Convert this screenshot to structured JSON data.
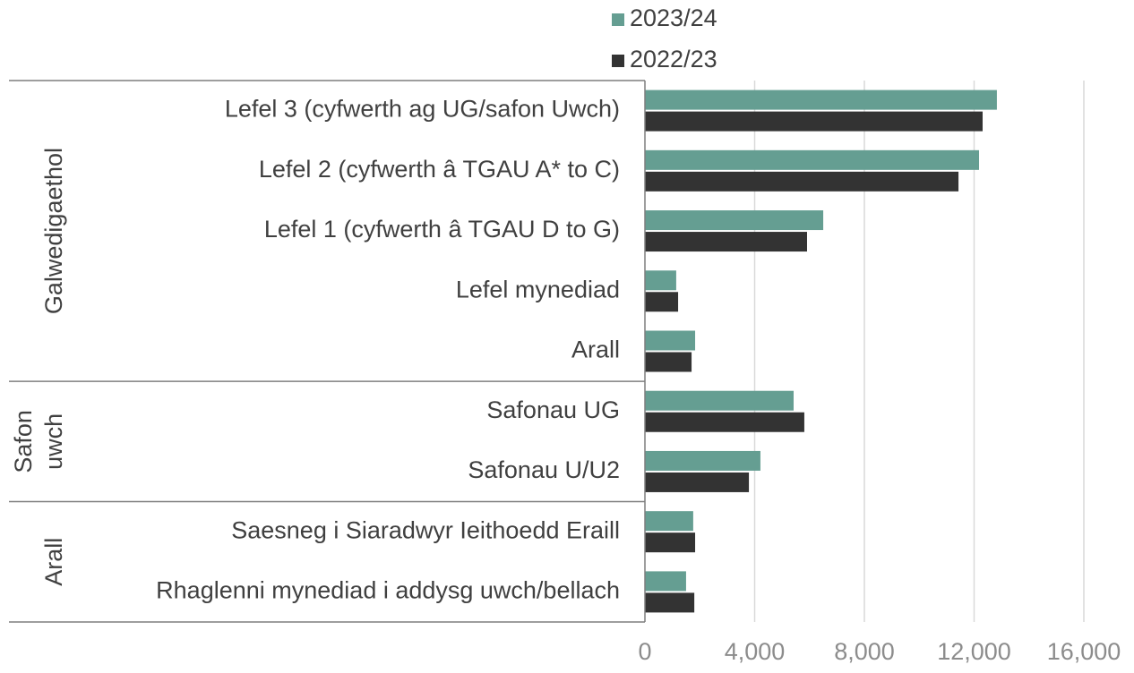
{
  "chart_data": {
    "type": "bar",
    "orientation": "horizontal",
    "groups": [
      {
        "name": "Galwedigaethol",
        "categories": [
          "Lefel 3 (cyfwerth ag UG/safon Uwch)",
          "Lefel 2 (cyfwerth â TGAU A* to C)",
          "Lefel 1 (cyfwerth â TGAU D to G)",
          "Lefel mynediad",
          "Arall"
        ]
      },
      {
        "name": "Safon uwch",
        "categories": [
          "Safonau UG",
          "Safonau U/U2"
        ]
      },
      {
        "name": "Arall",
        "categories": [
          "Saesneg i Siaradwyr Ieithoedd Eraill",
          "Rhaglenni mynediad i addysg uwch/bellach"
        ]
      }
    ],
    "series": [
      {
        "name": "2023/24",
        "color": "#659e92",
        "values": [
          12830,
          12180,
          6500,
          1140,
          1830,
          5420,
          4210,
          1760,
          1500
        ]
      },
      {
        "name": "2022/23",
        "color": "#333333",
        "values": [
          12310,
          11430,
          5910,
          1210,
          1700,
          5810,
          3790,
          1830,
          1800
        ]
      }
    ],
    "xlim": [
      0,
      16000
    ],
    "xticks": [
      0,
      {
        "value": 4000,
        "label": "4,000"
      },
      {
        "value": 8000,
        "label": "8,000"
      },
      {
        "value": 12000,
        "label": "12,000"
      },
      {
        "value": 16000,
        "label": "16,000"
      }
    ],
    "grid": true,
    "legend": "top"
  }
}
